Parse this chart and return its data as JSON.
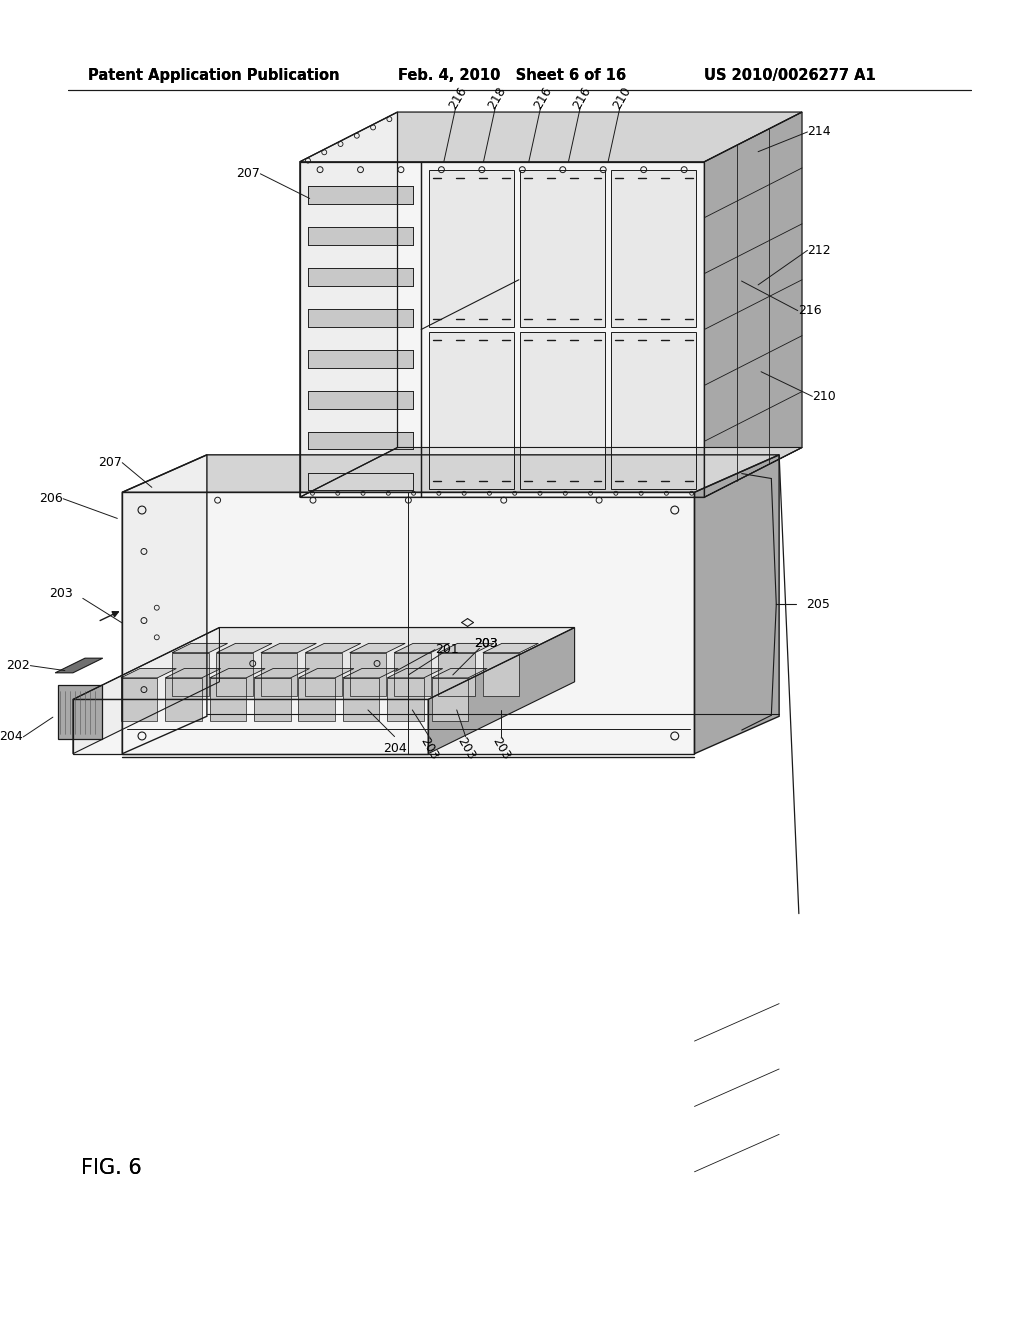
{
  "background_color": "#ffffff",
  "header_left": "Patent Application Publication",
  "header_center": "Feb. 4, 2010   Sheet 6 of 16",
  "header_right": "US 2010/0026277 A1",
  "figure_label": "FIG. 6",
  "header_font_size": 10.5,
  "figure_label_font_size": 15,
  "line_color": "#1a1a1a",
  "text_color": "#000000",
  "light_gray": "#d4d4d4",
  "mid_gray": "#a8a8a8",
  "dark_gray": "#707070",
  "white_ish": "#f5f5f5",
  "very_light": "#eeeeee"
}
